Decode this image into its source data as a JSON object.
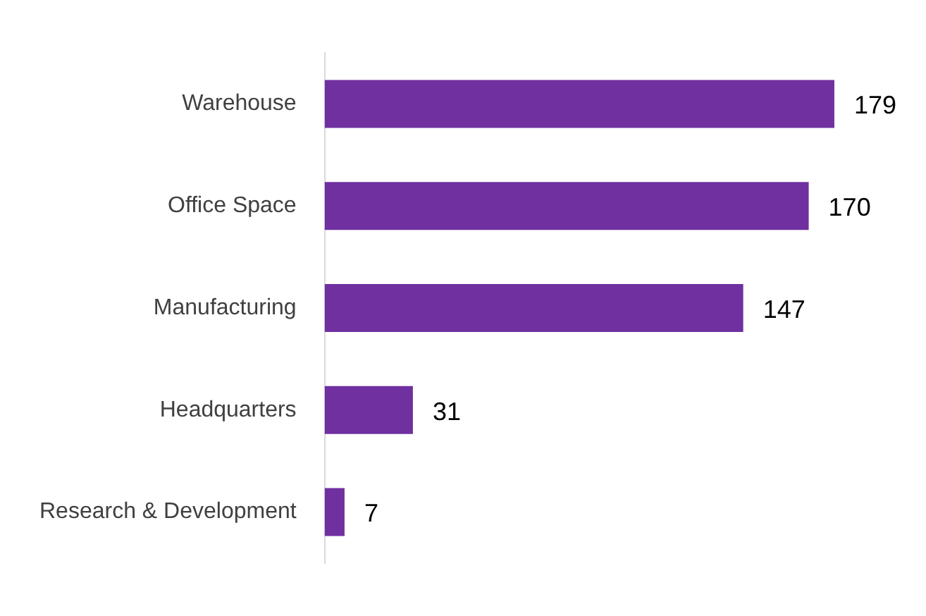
{
  "chart_data": {
    "type": "bar",
    "orientation": "horizontal",
    "categories": [
      "Warehouse",
      "Office Space",
      "Manufacturing",
      "Headquarters",
      "Research & Development"
    ],
    "values": [
      179,
      170,
      147,
      31,
      7
    ],
    "color": "#7030a0",
    "data_labels": true,
    "legend": false
  }
}
